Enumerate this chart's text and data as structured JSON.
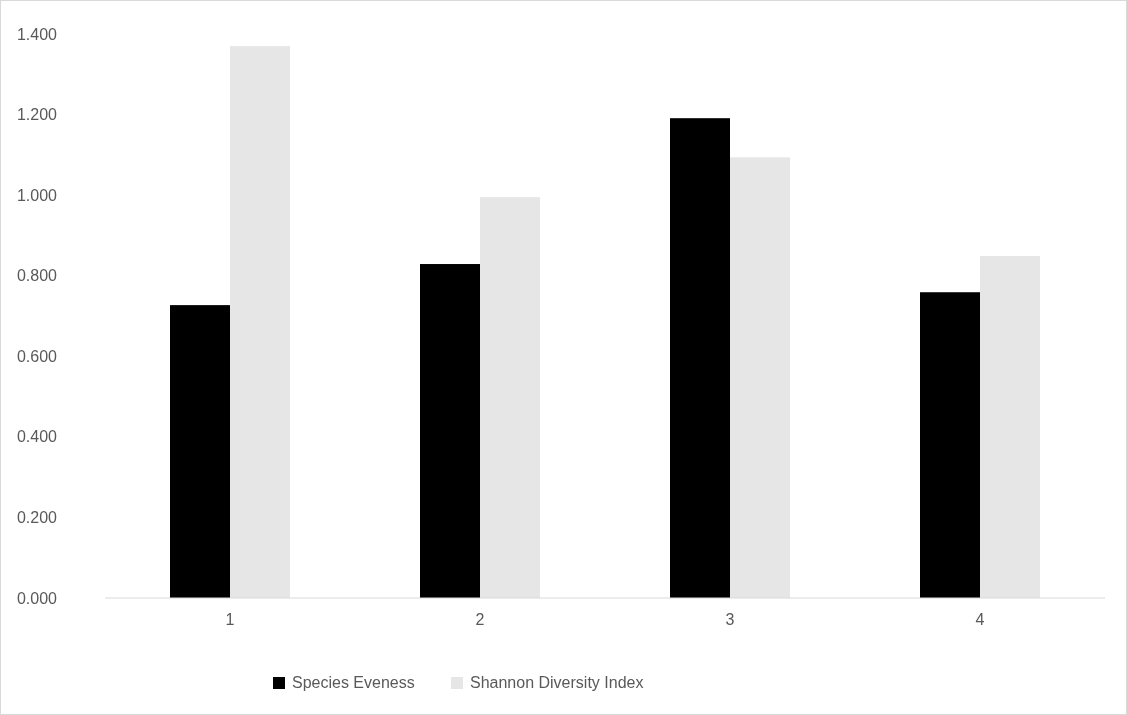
{
  "chart_data": {
    "type": "bar",
    "categories": [
      "1",
      "2",
      "3",
      "4"
    ],
    "series": [
      {
        "name": "Species Eveness",
        "color": "#000000",
        "values": [
          0.727,
          0.829,
          1.191,
          0.759
        ]
      },
      {
        "name": "Shannon Diversity Index",
        "color": "#e7e6e6",
        "values": [
          1.37,
          0.995,
          1.094,
          0.849
        ]
      }
    ],
    "ylim": [
      0,
      1.4
    ],
    "yticks": [
      {
        "value": 0,
        "label": "0.000"
      },
      {
        "value": 0.2,
        "label": "0.200"
      },
      {
        "value": 0.4,
        "label": "0.400"
      },
      {
        "value": 0.6,
        "label": "0.600"
      },
      {
        "value": 0.8,
        "label": "0.800"
      },
      {
        "value": 1,
        "label": "1.000"
      },
      {
        "value": 1.2,
        "label": "1.200"
      },
      {
        "value": 1.4,
        "label": "1.400"
      }
    ],
    "grid": false,
    "legend": "bottom"
  }
}
